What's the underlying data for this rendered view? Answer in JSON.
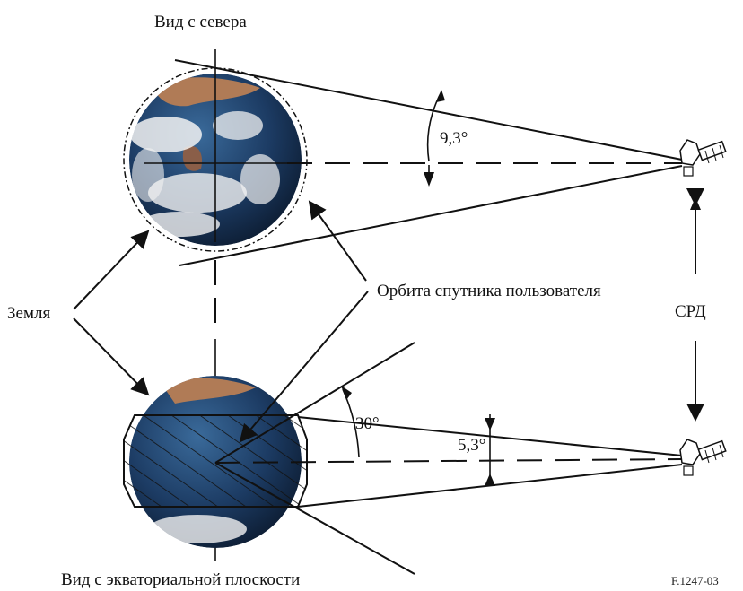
{
  "labels": {
    "top_view": "Вид с севера",
    "bottom_view": "Вид с экваториальной плоскости",
    "earth": "Земля",
    "user_orbit": "Орбита спутника пользователя",
    "drs": "СРД",
    "angle_top": "9,3°",
    "angle_bottom_small": "5,3°",
    "angle_bottom_large": "30°",
    "figure_id": "F.1247-03"
  },
  "icons": {
    "earth_top": "earth-globe-icon",
    "earth_bottom": "earth-globe-icon",
    "satellite_top": "satellite-icon",
    "satellite_bottom": "satellite-icon"
  },
  "colors": {
    "ocean": "#1c3b63",
    "land": "#b07b56",
    "cloud": "#f2f2f2",
    "line": "#111111"
  }
}
